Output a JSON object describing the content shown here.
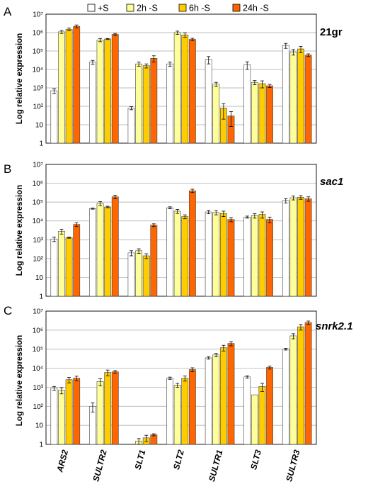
{
  "legend": [
    {
      "name": "+S",
      "color": "#ffffff"
    },
    {
      "name": "2h -S",
      "color": "#ffff99"
    },
    {
      "name": "6h -S",
      "color": "#ffcc00"
    },
    {
      "name": "24h -S",
      "color": "#ff6600"
    }
  ],
  "categories": [
    "ARS2",
    "SULTR2",
    "SLT1",
    "SLT2",
    "SULTR1",
    "SLT3",
    "SULTR3"
  ],
  "chart_data": [
    {
      "type": "bar",
      "panel": "A",
      "title": "21gr",
      "ylabel": "Log relative expression",
      "yscale": "log",
      "ylim": [
        1,
        10000000
      ],
      "ytick_labels": [
        "1",
        "10",
        "10²",
        "10³",
        "10⁴",
        "10⁵",
        "10⁶",
        "10⁷"
      ],
      "categories": [
        "ARS2",
        "SULTR2",
        "SLT1",
        "SLT2",
        "SULTR1",
        "SLT3",
        "SULTR3"
      ],
      "series": [
        {
          "name": "+S",
          "values": [
            700,
            25000,
            80,
            20000,
            35000,
            18000,
            200000
          ],
          "errors": [
            200,
            6000,
            15,
            5000,
            15000,
            8000,
            60000
          ]
        },
        {
          "name": "2h -S",
          "values": [
            1100000,
            400000,
            20000,
            1000000,
            1600,
            2000,
            90000
          ],
          "errors": [
            200000,
            80000,
            5000,
            200000,
            400,
            500,
            30000
          ]
        },
        {
          "name": "6h -S",
          "values": [
            1500000,
            450000,
            16000,
            750000,
            80,
            1700,
            130000
          ],
          "errors": [
            250000,
            30000,
            4000,
            200000,
            60,
            700,
            50000
          ]
        },
        {
          "name": "24h -S",
          "values": [
            2200000,
            800000,
            40000,
            430000,
            30,
            1300,
            60000
          ],
          "errors": [
            400000,
            100000,
            15000,
            60000,
            22,
            250,
            10000
          ]
        }
      ]
    },
    {
      "type": "bar",
      "panel": "B",
      "title": "sac1",
      "ylabel": "Log relative expression",
      "yscale": "log",
      "ylim": [
        1,
        10000000
      ],
      "ytick_labels": [
        "1",
        "10",
        "10²",
        "10³",
        "10⁴",
        "10⁵",
        "10⁶",
        "10⁷"
      ],
      "categories": [
        "ARS2",
        "SULTR2",
        "SLT1",
        "SLT2",
        "SULTR1",
        "SLT3",
        "SULTR3"
      ],
      "series": [
        {
          "name": "+S",
          "values": [
            1100,
            45000,
            200,
            50000,
            30000,
            16000,
            120000
          ],
          "errors": [
            300,
            3000,
            60,
            6000,
            6000,
            2000,
            30000
          ]
        },
        {
          "name": "2h -S",
          "values": [
            2800,
            85000,
            260,
            33000,
            28000,
            19000,
            170000
          ],
          "errors": [
            800,
            20000,
            70,
            8000,
            7000,
            5000,
            40000
          ]
        },
        {
          "name": "6h -S",
          "values": [
            1300,
            55000,
            140,
            17000,
            25000,
            22000,
            180000
          ],
          "errors": [
            100,
            5000,
            40,
            4000,
            8000,
            8000,
            40000
          ]
        },
        {
          "name": "24h -S",
          "values": [
            6500,
            190000,
            6000,
            400000,
            12000,
            12000,
            150000
          ],
          "errors": [
            1500,
            40000,
            1000,
            80000,
            3000,
            4000,
            40000
          ]
        }
      ]
    },
    {
      "type": "bar",
      "panel": "C",
      "title": "snrk2.1",
      "ylabel": "Log relative expression",
      "yscale": "log",
      "ylim": [
        1,
        10000000
      ],
      "ytick_labels": [
        "1",
        "10",
        "10²",
        "10³",
        "10⁴",
        "10⁵",
        "10⁶",
        "10⁷"
      ],
      "categories": [
        "ARS2",
        "SULTR2",
        "SLT1",
        "SLT2",
        "SULTR1",
        "SLT3",
        "SULTR3"
      ],
      "series": [
        {
          "name": "+S",
          "values": [
            900,
            100,
            1,
            3000,
            35000,
            3500,
            100000
          ],
          "errors": [
            200,
            50,
            0,
            400,
            5000,
            500,
            10000
          ]
        },
        {
          "name": "2h -S",
          "values": [
            700,
            2000,
            1.5,
            1300,
            50000,
            400,
            500000
          ],
          "errors": [
            250,
            800,
            0.5,
            300,
            10000,
            0,
            150000
          ]
        },
        {
          "name": "6h -S",
          "values": [
            2500,
            6000,
            2.2,
            3000,
            120000,
            1100,
            1500000
          ],
          "errors": [
            800,
            2000,
            0.8,
            900,
            40000,
            500,
            500000
          ]
        },
        {
          "name": "24h -S",
          "values": [
            3000,
            6500,
            3.2,
            8500,
            200000,
            11000,
            2500000
          ],
          "errors": [
            800,
            1000,
            0.4,
            2000,
            50000,
            2000,
            500000
          ]
        }
      ]
    }
  ]
}
